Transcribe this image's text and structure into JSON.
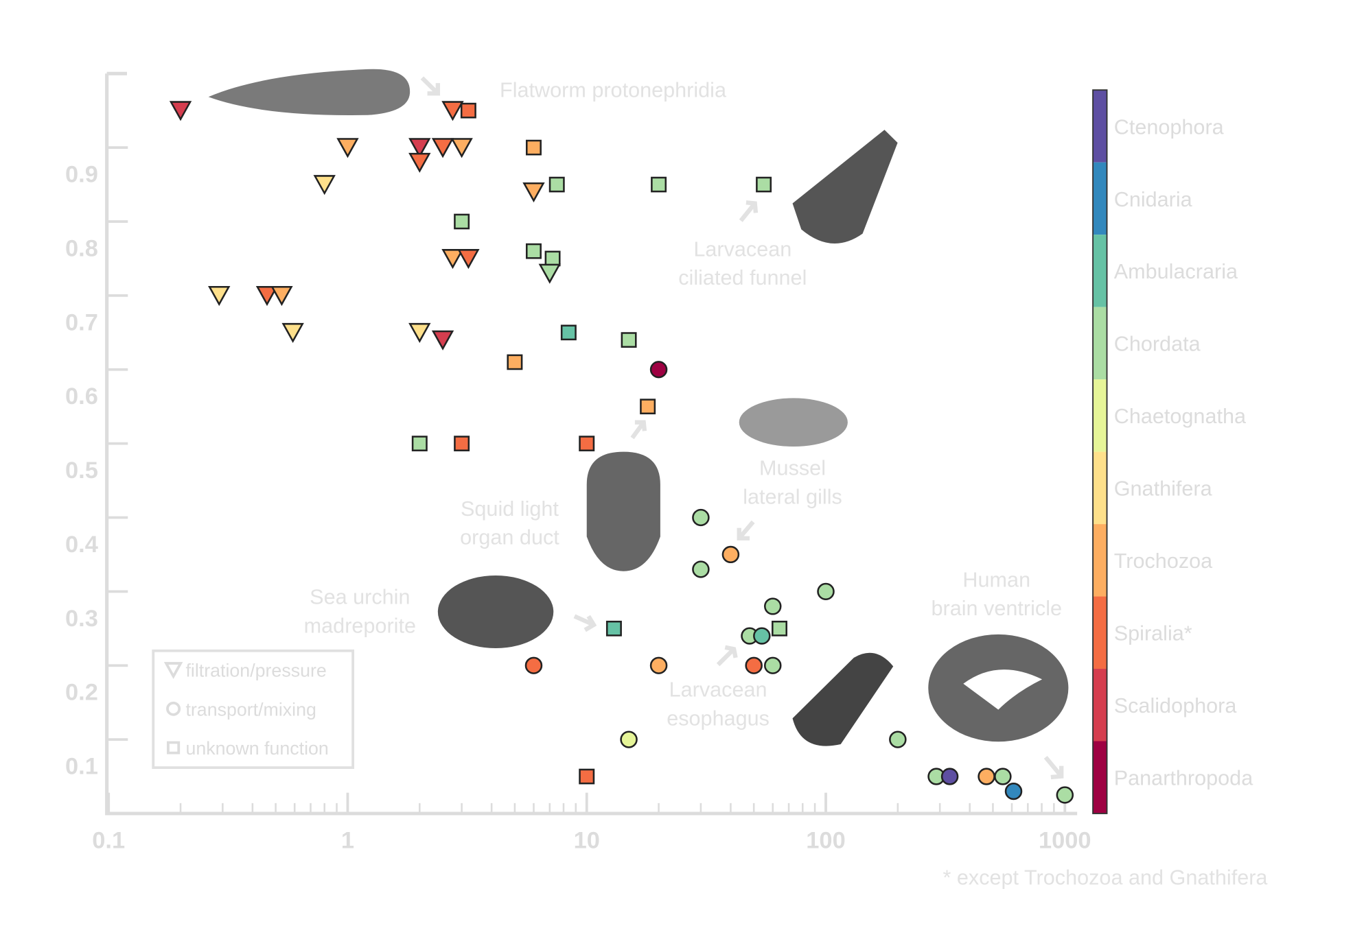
{
  "chart_data": {
    "type": "scatter",
    "log_x": true,
    "xlim": [
      0.1,
      1100
    ],
    "ylim": [
      0,
      1
    ],
    "xticks": [
      0.1,
      1,
      10,
      100,
      1000
    ],
    "xminorticks": [
      0.2,
      0.3,
      0.4,
      0.5,
      0.6,
      0.7,
      0.8,
      0.9,
      2,
      3,
      4,
      5,
      6,
      7,
      8,
      9,
      20,
      30,
      40,
      50,
      60,
      70,
      80,
      90,
      200,
      300,
      400,
      500,
      600,
      700,
      800,
      900
    ],
    "yticks": [
      0.1,
      0.2,
      0.3,
      0.4,
      0.5,
      0.6,
      0.7,
      0.8,
      0.9
    ],
    "x": [
      0.2,
      2.75,
      3.2,
      1,
      2,
      2,
      2.5,
      3,
      6,
      0.8,
      6,
      7.5,
      20,
      55,
      3,
      2.75,
      3.2,
      6,
      7.2,
      7,
      0.29,
      0.46,
      0.53,
      0.59,
      2,
      2.5,
      8.4,
      15,
      5,
      20,
      18,
      2,
      3,
      10,
      30,
      30,
      40,
      60,
      100,
      48,
      54,
      64,
      50,
      60,
      13,
      6,
      20,
      15,
      10,
      200,
      290,
      330,
      470,
      550,
      610,
      1000
    ],
    "y": [
      0.95,
      0.95,
      0.95,
      0.9,
      0.9,
      0.88,
      0.9,
      0.9,
      0.9,
      0.85,
      0.84,
      0.85,
      0.85,
      0.85,
      0.8,
      0.75,
      0.75,
      0.76,
      0.75,
      0.73,
      0.7,
      0.7,
      0.7,
      0.65,
      0.65,
      0.64,
      0.65,
      0.64,
      0.61,
      0.6,
      0.55,
      0.5,
      0.5,
      0.5,
      0.4,
      0.33,
      0.35,
      0.28,
      0.3,
      0.24,
      0.24,
      0.25,
      0.2,
      0.2,
      0.25,
      0.2,
      0.2,
      0.1,
      0.05,
      0.1,
      0.05,
      0.05,
      0.05,
      0.05,
      0.03,
      0.025
    ],
    "colors": [
      "#d53e4f",
      "#f46d43",
      "#f46d43",
      "#fdae61",
      "#d53e4f",
      "#f46d43",
      "#f46d43",
      "#fdae61",
      "#fdae61",
      "#fee08b",
      "#fdae61",
      "#abdda4",
      "#abdda4",
      "#abdda4",
      "#abdda4",
      "#fdae61",
      "#f46d43",
      "#abdda4",
      "#abdda4",
      "#abdda4",
      "#fee08b",
      "#f46d43",
      "#fdae61",
      "#fee08b",
      "#fee08b",
      "#d53e4f",
      "#66c2a5",
      "#abdda4",
      "#fdae61",
      "#9e0142",
      "#fdae61",
      "#abdda4",
      "#f46d43",
      "#f46d43",
      "#abdda4",
      "#abdda4",
      "#fdae61",
      "#abdda4",
      "#abdda4",
      "#abdda4",
      "#66c2a5",
      "#abdda4",
      "#f46d43",
      "#abdda4",
      "#66c2a5",
      "#f46d43",
      "#fdae61",
      "#e6f598",
      "#f46d43",
      "#abdda4",
      "#abdda4",
      "#5e4fa2",
      "#fdae61",
      "#abdda4",
      "#3288bd",
      "#abdda4"
    ],
    "markers": [
      "triangle",
      "triangle",
      "square",
      "triangle",
      "triangle",
      "triangle",
      "triangle",
      "triangle",
      "square",
      "triangle",
      "triangle",
      "square",
      "square",
      "square",
      "square",
      "triangle",
      "triangle",
      "square",
      "square",
      "triangle",
      "triangle",
      "triangle",
      "triangle",
      "triangle",
      "triangle",
      "triangle",
      "square",
      "square",
      "square",
      "circle",
      "square",
      "square",
      "square",
      "square",
      "circle",
      "circle",
      "circle",
      "circle",
      "circle",
      "circle",
      "circle",
      "square",
      "circle",
      "circle",
      "square",
      "circle",
      "circle",
      "circle",
      "square",
      "circle",
      "circle",
      "circle",
      "circle",
      "circle",
      "circle",
      "circle"
    ],
    "colorbar": {
      "labels": [
        "Ctenophora",
        "Cnidaria",
        "Ambulacraria",
        "Chordata",
        "Chaetognatha",
        "Gnathifera",
        "Trochozoa",
        "Spiralia*",
        "Scalidophora",
        "Panarthropoda"
      ],
      "colors": [
        "#5e4fa2",
        "#3288bd",
        "#66c2a5",
        "#abdda4",
        "#e6f598",
        "#fee08b",
        "#fdae61",
        "#f46d43",
        "#d53e4f",
        "#9e0142"
      ]
    },
    "shape_legend": [
      {
        "label": "filtration/pressure",
        "marker": "triangle"
      },
      {
        "label": "transport/mixing",
        "marker": "circle"
      },
      {
        "label": "unknown function",
        "marker": "square"
      }
    ],
    "annotations": [
      [
        "Flatworm protonephridia"
      ],
      [
        "Larvacean",
        "ciliated funnel"
      ],
      [
        "Mussel",
        "lateral gills"
      ],
      [
        "Squid light",
        "organ duct"
      ],
      [
        "Sea urchin",
        "madreporite"
      ],
      [
        "Larvacean",
        "esophagus"
      ],
      [
        "Human",
        "brain ventricle"
      ]
    ],
    "footnote": "* except Trochozoa and Gnathifera"
  }
}
